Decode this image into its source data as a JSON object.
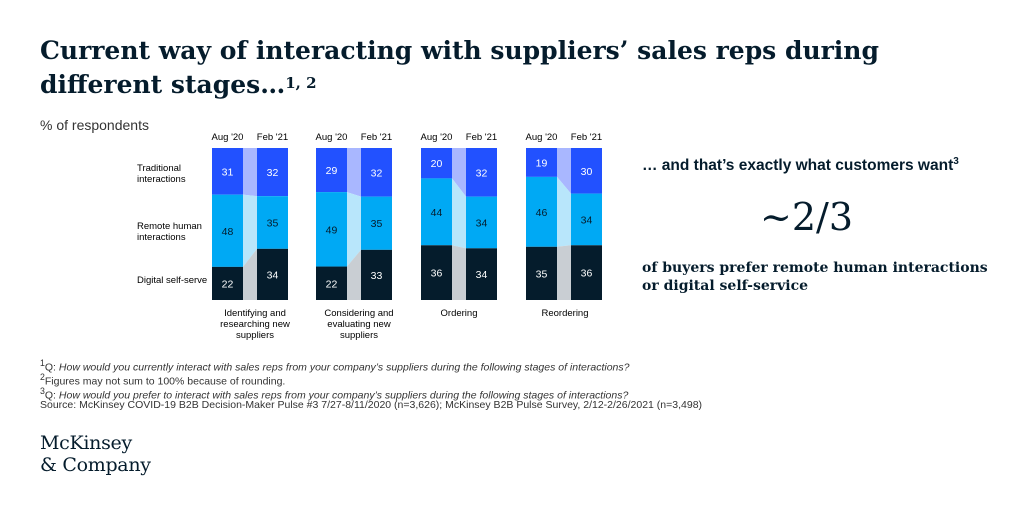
{
  "title_text": "Current way of interacting with suppliers’ sales reps during different stages…",
  "title_sup": "1, 2",
  "unit_label": "% of respondents",
  "chart_data": {
    "type": "bar",
    "stacked": true,
    "periods": [
      "Aug '20",
      "Feb '21"
    ],
    "categories": [
      "Identifying and researching new suppliers",
      "Considering and evaluating new suppliers",
      "Ordering",
      "Reordering"
    ],
    "series": [
      {
        "name": "Traditional interactions",
        "color": "#2251ff",
        "values": [
          [
            31,
            32
          ],
          [
            29,
            32
          ],
          [
            20,
            32
          ],
          [
            19,
            30
          ]
        ]
      },
      {
        "name": "Remote human interactions",
        "color": "#00a9f4",
        "values": [
          [
            48,
            35
          ],
          [
            49,
            35
          ],
          [
            44,
            34
          ],
          [
            46,
            34
          ]
        ]
      },
      {
        "name": "Digital self-serve",
        "color": "#051c2c",
        "values": [
          [
            22,
            34
          ],
          [
            22,
            33
          ],
          [
            36,
            34
          ],
          [
            35,
            36
          ]
        ]
      }
    ],
    "ylim": [
      0,
      100
    ]
  },
  "right_panel": {
    "heading": "… and that’s exactly what customers want",
    "heading_sup": "3",
    "big_stat": "~2/3",
    "subtext": "of buyers prefer remote human interactions or digital self-service"
  },
  "footnotes": {
    "f1_mark": "1",
    "f1_prefix": "Q: ",
    "f1_text": "How would you currently interact with sales reps from your company’s suppliers during the following stages of interactions?",
    "f2_mark": "2",
    "f2_text": "Figures may not sum to 100% because of rounding.",
    "f3_mark": "3",
    "f3_prefix": "Q: ",
    "f3_text": "How would you prefer to interact with sales reps from your company’s suppliers during the following stages of interactions?",
    "source": "Source: McKinsey COVID-19 B2B Decision-Maker Pulse #3 7/27-8/11/2020 (n=3,626); McKinsey B2B Pulse Survey, 2/12-2/26/2021 (n=3,498)"
  },
  "logo": {
    "line1": "McKinsey",
    "line2": "& Company"
  }
}
